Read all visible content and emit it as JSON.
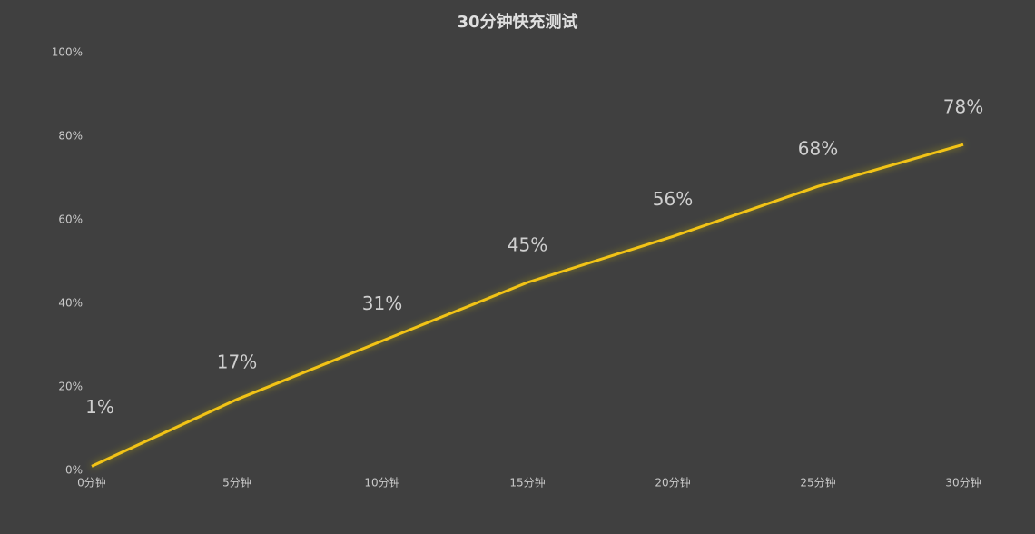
{
  "chart_data": {
    "type": "line",
    "title": "30分钟快充测试",
    "categories": [
      "0分钟",
      "5分钟",
      "10分钟",
      "15分钟",
      "20分钟",
      "25分钟",
      "30分钟"
    ],
    "series": [
      {
        "color": "#f2c318",
        "values": [
          1,
          17,
          31,
          45,
          56,
          68,
          78
        ],
        "value_labels": [
          "1%",
          "17%",
          "31%",
          "45%",
          "56%",
          "68%",
          "78%"
        ]
      }
    ],
    "ylim": [
      0,
      100
    ],
    "yticks": [
      {
        "value": 0,
        "label": "0%"
      },
      {
        "value": 20,
        "label": "20%"
      },
      {
        "value": 40,
        "label": "40%"
      },
      {
        "value": 60,
        "label": "60%"
      },
      {
        "value": 80,
        "label": "80%"
      },
      {
        "value": 100,
        "label": "100%"
      }
    ],
    "grid": false
  }
}
